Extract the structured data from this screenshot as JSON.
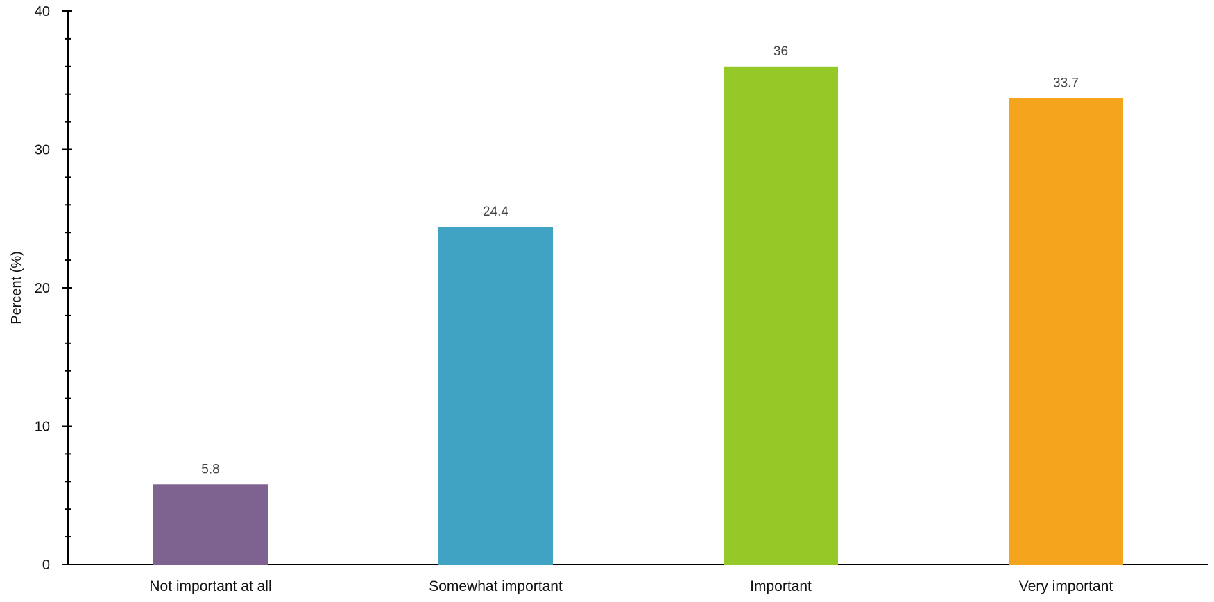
{
  "chart_data": {
    "type": "bar",
    "title": "",
    "xlabel": "",
    "ylabel": "Percent (%)",
    "ylim": [
      0,
      40
    ],
    "y_major_ticks": [
      0,
      10,
      20,
      30,
      40
    ],
    "y_minor_step": 2,
    "grid": false,
    "legend": "none",
    "categories": [
      "Not important at all",
      "Somewhat important",
      "Important",
      "Very important"
    ],
    "values": [
      5.8,
      24.4,
      36,
      33.7
    ],
    "data_labels": [
      "5.8",
      "24.4",
      "36",
      "33.7"
    ],
    "colors": [
      "#7E6390",
      "#41A3C3",
      "#95C927",
      "#F4A41D"
    ]
  }
}
